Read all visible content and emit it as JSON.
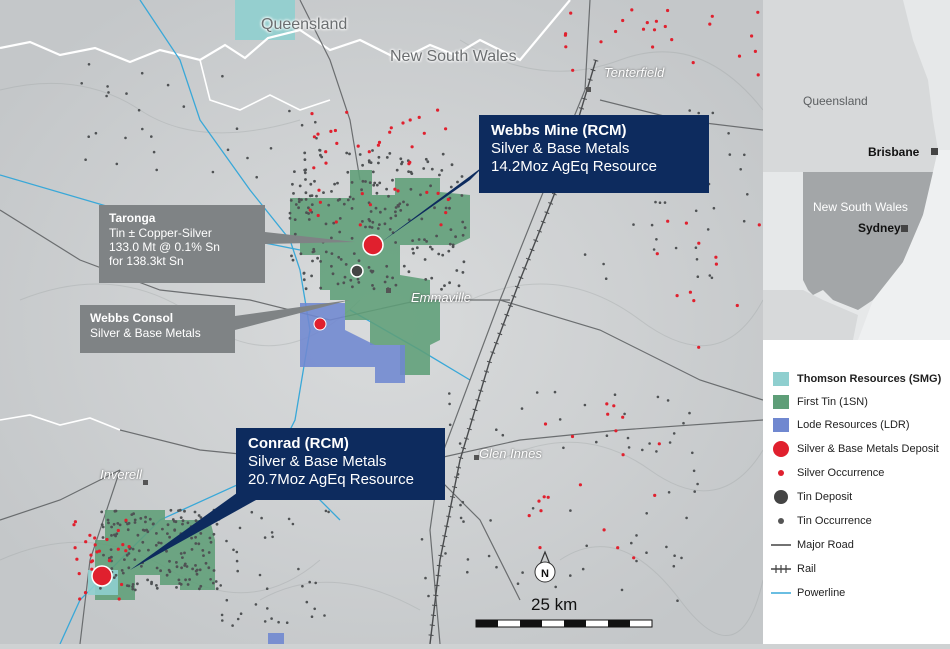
{
  "map": {
    "state_labels": [
      "Queensland",
      "New South Wales"
    ],
    "towns": [
      "Tenterfield",
      "Emmaville",
      "Glen Innes",
      "Inverell"
    ],
    "scale_label": "25 km",
    "north_label": "N"
  },
  "callouts": {
    "webbs_mine": {
      "title": "Webbs Mine (RCM)",
      "line1": "Silver & Base Metals",
      "line2": "14.2Moz AgEq Resource"
    },
    "taronga": {
      "title": "Taronga",
      "line1": "Tin ± Copper-Silver",
      "line2": "133.0 Mt @ 0.1% Sn",
      "line3": "for 138.3kt Sn"
    },
    "webbs_consol": {
      "title": "Webbs Consol",
      "line1": "Silver & Base Metals"
    },
    "conrad": {
      "title": "Conrad (RCM)",
      "line1": "Silver & Base Metals",
      "line2": "20.7Moz AgEq Resource"
    }
  },
  "inset": {
    "labels": {
      "qld": "Queensland",
      "brisbane": "Brisbane",
      "nsw": "New South Wales",
      "sydney": "Sydney"
    }
  },
  "legend": {
    "items": [
      {
        "label": "Thomson Resources (SMG)",
        "icon": "teal-square",
        "color": "#8fcfcf"
      },
      {
        "label": "First Tin (1SN)",
        "icon": "green-square",
        "color": "#5e9e78"
      },
      {
        "label": "Lode Resources (LDR)",
        "icon": "blue-square",
        "color": "#7088d0"
      },
      {
        "label": "Silver & Base Metals Deposit",
        "icon": "big-red-dot",
        "color": "#e0202e"
      },
      {
        "label": "Silver Occurrence",
        "icon": "small-red-dot",
        "color": "#e0202e"
      },
      {
        "label": "Tin Deposit",
        "icon": "big-grey-dot",
        "color": "#444444"
      },
      {
        "label": "Tin Occurrence",
        "icon": "small-grey-dot",
        "color": "#555555"
      },
      {
        "label": "Major Road",
        "icon": "road-line",
        "color": "#444444"
      },
      {
        "label": "Rail",
        "icon": "rail-line",
        "color": "#444444"
      },
      {
        "label": "Powerline",
        "icon": "power-line",
        "color": "#39a8d8"
      }
    ]
  }
}
